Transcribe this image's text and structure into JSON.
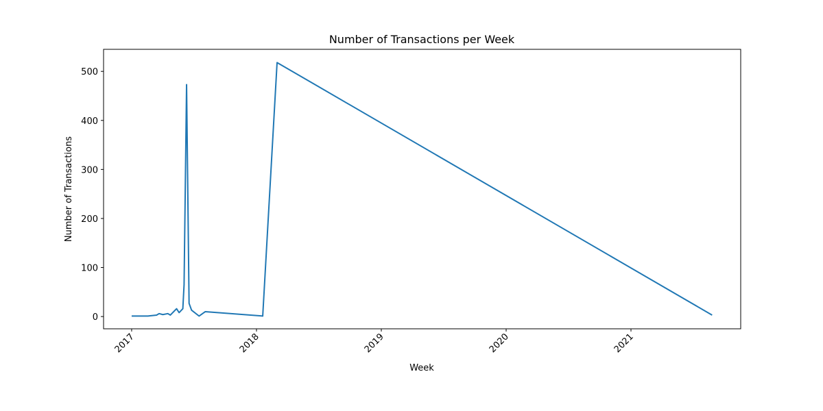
{
  "chart_data": {
    "type": "line",
    "title": "Number of Transactions per Week",
    "xlabel": "Week",
    "ylabel": "Number of Transactions",
    "x": [
      2017.0,
      2017.13,
      2017.2,
      2017.22,
      2017.25,
      2017.29,
      2017.31,
      2017.36,
      2017.38,
      2017.41,
      2017.42,
      2017.44,
      2017.46,
      2017.48,
      2017.54,
      2017.59,
      2018.05,
      2018.165,
      2021.65
    ],
    "series": [
      {
        "name": "Number of Transactions",
        "color": "#1f77b4",
        "values": [
          1,
          1,
          3,
          6,
          4,
          6,
          3,
          16,
          8,
          16,
          65,
          473,
          27,
          13,
          1,
          10,
          1,
          518,
          3
        ]
      }
    ],
    "xlim": [
      2016.775,
      2021.879
    ],
    "xticks": [
      2017,
      2018,
      2019,
      2020,
      2021
    ],
    "ylim": [
      -25,
      545
    ],
    "yticks": [
      0,
      100,
      200,
      300,
      400,
      500
    ],
    "grid": false
  }
}
